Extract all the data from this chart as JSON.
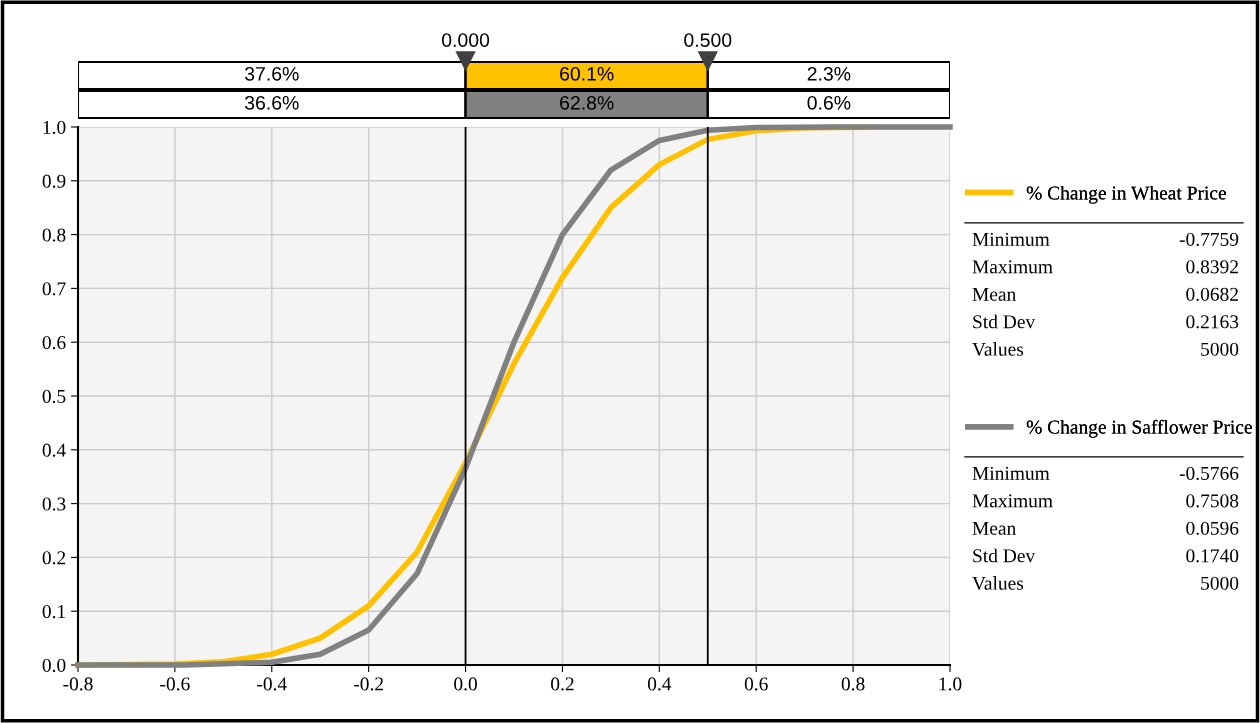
{
  "chart_data": {
    "type": "line",
    "series": [
      {
        "name": "% Change in Wheat Price",
        "color": "#ffc000",
        "x": [
          -0.8,
          -0.78,
          -0.6,
          -0.5,
          -0.4,
          -0.3,
          -0.2,
          -0.1,
          0.0,
          0.1,
          0.2,
          0.3,
          0.4,
          0.5,
          0.6,
          0.7,
          0.84
        ],
        "values": [
          0.0,
          0.0,
          0.002,
          0.006,
          0.02,
          0.05,
          0.11,
          0.21,
          0.376,
          0.56,
          0.72,
          0.85,
          0.93,
          0.977,
          0.993,
          0.998,
          1.0
        ]
      },
      {
        "name": "% Change in Safflower Price",
        "color": "#808080",
        "x": [
          -0.8,
          -0.58,
          -0.4,
          -0.3,
          -0.2,
          -0.1,
          0.0,
          0.1,
          0.2,
          0.3,
          0.4,
          0.5,
          0.6,
          0.75,
          1.0
        ],
        "values": [
          0.0,
          0.0,
          0.005,
          0.02,
          0.065,
          0.17,
          0.366,
          0.6,
          0.8,
          0.92,
          0.975,
          0.994,
          0.999,
          1.0,
          1.0
        ]
      }
    ],
    "xlim": [
      -0.8,
      1.0
    ],
    "xticks": [
      -0.8,
      -0.6,
      -0.4,
      -0.2,
      {
        "value": 0,
        "label": "0.0"
      },
      0.2,
      0.4,
      0.6,
      0.8,
      {
        "value": 1,
        "label": "1.0"
      }
    ],
    "ylim": [
      0.0,
      1.0
    ],
    "yticks": [
      {
        "value": 0,
        "label": "0.0"
      },
      0.1,
      0.2,
      0.3,
      0.4,
      0.5,
      0.6,
      0.7,
      0.8,
      0.9,
      {
        "value": 1,
        "label": "1.0"
      }
    ],
    "ref_lines": [
      {
        "axis": "x",
        "value": 0.0,
        "label": "0.000",
        "color": "#000000"
      },
      {
        "axis": "x",
        "value": 0.5,
        "label": "0.500",
        "color": "#000000"
      }
    ],
    "annotations": [
      "37.6%",
      "60.1%",
      "2.3%",
      "36.6%",
      "62.8%",
      "0.6%",
      "Minimum",
      "-0.7759",
      "Maximum",
      "0.8392",
      "Mean",
      "0.0682",
      "Std Dev",
      "0.2163",
      "Values",
      "5000",
      "Minimum",
      "-0.5766",
      "Maximum",
      "0.7508",
      "Mean",
      "0.0596",
      "Std Dev",
      "0.1740",
      "Values",
      "5000"
    ],
    "grid": true,
    "legend": "right",
    "marker": "none",
    "line_style": "solid"
  }
}
